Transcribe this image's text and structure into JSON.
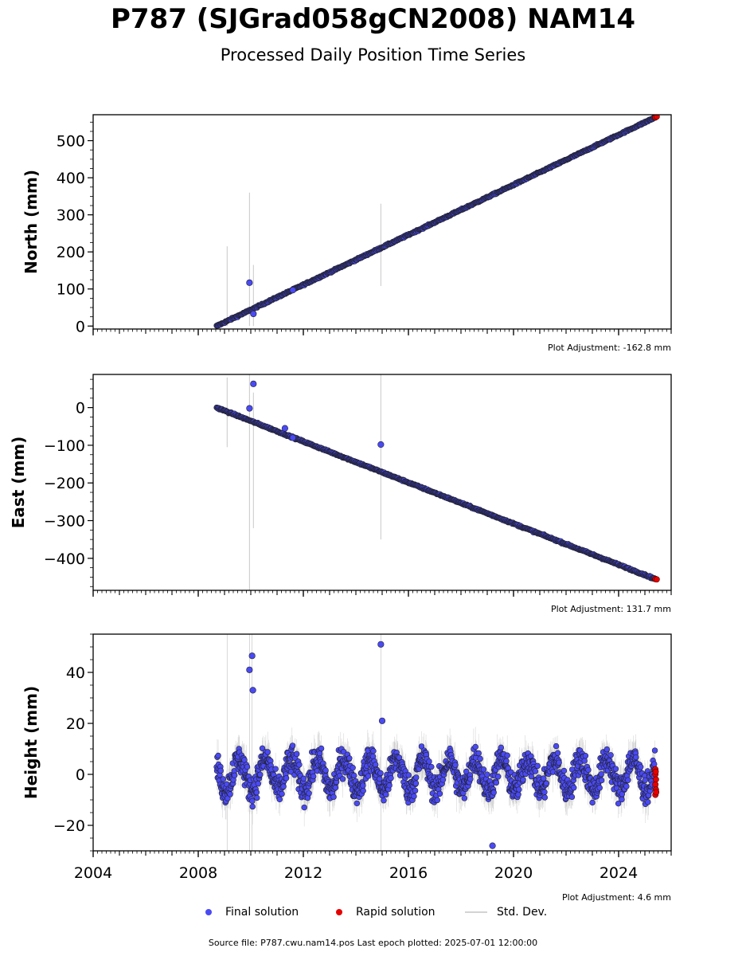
{
  "title": "P787 (SJGrad058gCN2008) NAM14",
  "subtitle": "Processed Daily Position Time Series",
  "source_text": "Source file: P787.cwu.nam14.pos  Last epoch plotted: 2025-07-01 12:00:00",
  "legend": {
    "final": "Final solution",
    "rapid": "Rapid solution",
    "std": "Std. Dev."
  },
  "colors": {
    "final": "#4a4af4",
    "rapid": "#e60000",
    "std": "#b4b4b4",
    "edge": "#222233"
  },
  "chart_data": [
    {
      "type": "scatter",
      "ylabel": "North (mm)",
      "adjustment": "Plot Adjustment: -162.8 mm",
      "xlim": [
        2004.0,
        2026.0
      ],
      "ylim": [
        -8,
        570
      ],
      "yticks": [
        0,
        100,
        200,
        300,
        400,
        500
      ],
      "xticks": [
        2004,
        2008,
        2012,
        2016,
        2020,
        2024
      ],
      "xtick_labels_shown": false,
      "trend": {
        "start": [
          2008.7,
          0
        ],
        "end": [
          2025.4,
          563
        ]
      },
      "outliers": [
        [
          2009.95,
          117
        ],
        [
          2010.1,
          33
        ],
        [
          2011.6,
          97
        ]
      ],
      "error_bars": [
        [
          2009.1,
          0,
          215
        ],
        [
          2009.95,
          0,
          360
        ],
        [
          2010.1,
          0,
          165
        ],
        [
          2014.95,
          108,
          330
        ]
      ],
      "rapid_points": [
        [
          2025.4,
          563
        ],
        [
          2025.45,
          565
        ]
      ]
    },
    {
      "type": "scatter",
      "ylabel": "East (mm)",
      "adjustment": "Plot Adjustment: 131.7 mm",
      "xlim": [
        2004.0,
        2026.0
      ],
      "ylim": [
        -485,
        88
      ],
      "yticks": [
        0,
        -100,
        -200,
        -300,
        -400
      ],
      "ytick_labels": [
        "0",
        "−100",
        "−200",
        "−300",
        "−400"
      ],
      "xticks": [
        2004,
        2008,
        2012,
        2016,
        2020,
        2024
      ],
      "xtick_labels_shown": false,
      "trend": {
        "start": [
          2008.7,
          0
        ],
        "end": [
          2025.4,
          -455
        ]
      },
      "outliers": [
        [
          2009.95,
          -2
        ],
        [
          2010.1,
          63
        ],
        [
          2014.95,
          -98
        ],
        [
          2011.3,
          -55
        ],
        [
          2011.6,
          -80
        ]
      ],
      "error_bars": [
        [
          2009.1,
          -105,
          80
        ],
        [
          2009.95,
          -485,
          88
        ],
        [
          2010.1,
          -320,
          40
        ],
        [
          2014.95,
          -350,
          88
        ]
      ],
      "rapid_points": [
        [
          2025.4,
          -455
        ],
        [
          2025.45,
          -456
        ]
      ]
    },
    {
      "type": "scatter",
      "ylabel": "Height (mm)",
      "adjustment": "Plot Adjustment: 4.6 mm",
      "xlim": [
        2004.0,
        2026.0
      ],
      "ylim": [
        -30,
        55
      ],
      "yticks": [
        40,
        20,
        0,
        -20
      ],
      "ytick_labels": [
        "40",
        "20",
        "0",
        "−20"
      ],
      "xticks": [
        2004,
        2008,
        2012,
        2016,
        2020,
        2024
      ],
      "xtick_labels": [
        "2004",
        "2008",
        "2012",
        "2016",
        "2020",
        "2024"
      ],
      "xtick_labels_shown": true,
      "range": [
        2008.7,
        2025.4
      ],
      "seasonal_amplitude": 6,
      "noise": 4,
      "outliers": [
        [
          2009.95,
          41
        ],
        [
          2010.05,
          46.5
        ],
        [
          2010.08,
          33
        ],
        [
          2014.95,
          51
        ],
        [
          2019.2,
          -28
        ],
        [
          2015.0,
          21
        ]
      ],
      "error_bars": [
        [
          2009.1,
          -30,
          55
        ],
        [
          2009.95,
          -30,
          55
        ],
        [
          2010.05,
          -30,
          55
        ],
        [
          2014.95,
          -30,
          55
        ]
      ],
      "rapid_points": [
        [
          2025.4,
          2
        ],
        [
          2025.4,
          0
        ],
        [
          2025.42,
          -2
        ],
        [
          2025.4,
          -4
        ],
        [
          2025.42,
          -6
        ],
        [
          2025.4,
          -8
        ],
        [
          2025.41,
          1
        ],
        [
          2025.43,
          -7
        ]
      ]
    }
  ]
}
